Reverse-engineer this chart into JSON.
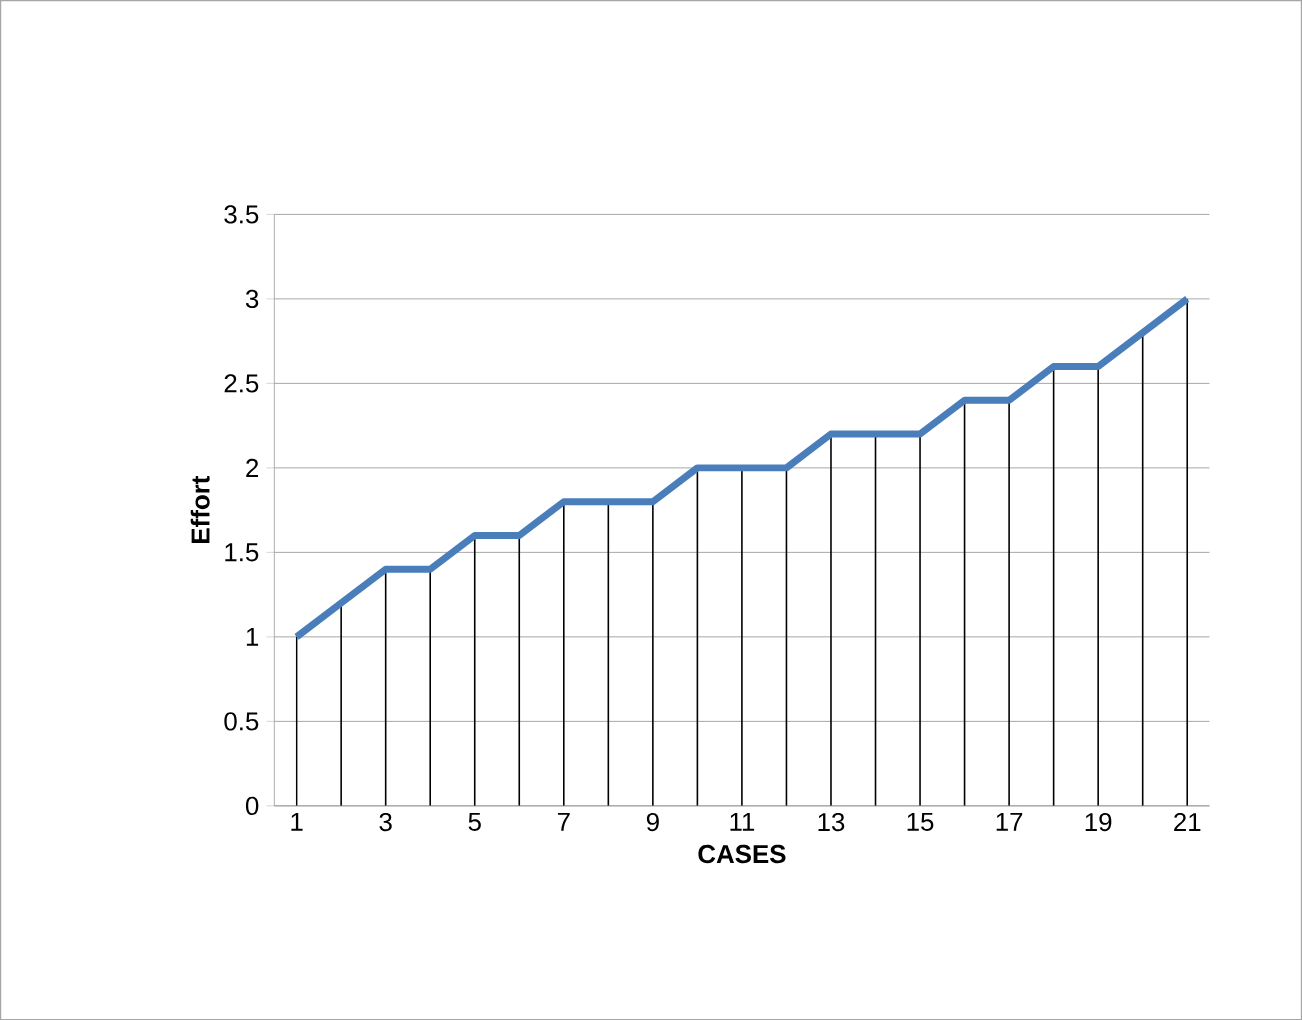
{
  "chart_data": {
    "type": "line",
    "xlabel": "CASES",
    "ylabel": "Effort",
    "categories": [
      "1",
      null,
      "3",
      null,
      "5",
      null,
      "7",
      null,
      "9",
      null,
      "11",
      null,
      "13",
      null,
      "15",
      null,
      "17",
      null,
      "19",
      null,
      "21"
    ],
    "series": [
      {
        "type": "bar",
        "color": "#000000",
        "values": [
          1,
          1.2,
          1.4,
          1.4,
          1.6,
          1.6,
          1.8,
          1.8,
          1.8,
          2,
          2,
          2,
          2.2,
          2.2,
          2.2,
          2.4,
          2.4,
          2.6,
          2.6,
          2.8,
          3
        ]
      },
      {
        "color": "#4a7ebb",
        "values": [
          1,
          1.2,
          1.4,
          1.4,
          1.6,
          1.6,
          1.8,
          1.8,
          1.8,
          2,
          2,
          2,
          2.2,
          2.2,
          2.2,
          2.4,
          2.4,
          2.6,
          2.6,
          2.8,
          3
        ]
      }
    ],
    "ylim": [
      0,
      3.5
    ],
    "yticks": [
      0,
      0.5,
      1,
      1.5,
      2,
      2.5,
      3,
      3.5
    ],
    "grid": "y",
    "marker": "none",
    "line_style": "solid"
  }
}
